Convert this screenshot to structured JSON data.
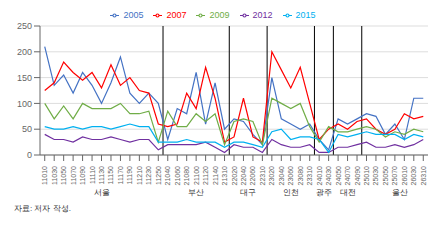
{
  "chart_data": {
    "type": "line",
    "caption": "자료: 저자 작성.",
    "categories": [
      "11010",
      "11030",
      "11050",
      "11070",
      "11090",
      "11110",
      "11130",
      "11150",
      "11170",
      "11190",
      "11210",
      "11230",
      "11250",
      "21040",
      "21060",
      "21080",
      "21100",
      "21120",
      "21140",
      "21310",
      "22020",
      "22040",
      "22060",
      "22310",
      "23020",
      "23040",
      "23060",
      "23080",
      "23310",
      "24010",
      "24030",
      "24050",
      "24070",
      "24090",
      "25010",
      "25030",
      "25050",
      "25070",
      "26010",
      "26030",
      "26310"
    ],
    "series": [
      {
        "name": "2005",
        "color": "#4472C4",
        "values": [
          210,
          135,
          155,
          120,
          160,
          135,
          100,
          140,
          190,
          120,
          100,
          120,
          100,
          30,
          90,
          80,
          160,
          60,
          140,
          50,
          70,
          65,
          40,
          20,
          150,
          70,
          60,
          50,
          60,
          30,
          10,
          70,
          60,
          70,
          80,
          75,
          40,
          60,
          30,
          110,
          110
        ]
      },
      {
        "name": "2007",
        "color": "#FF0000",
        "values": [
          125,
          140,
          180,
          160,
          145,
          160,
          130,
          175,
          135,
          150,
          125,
          120,
          60,
          55,
          60,
          120,
          90,
          170,
          110,
          25,
          35,
          110,
          35,
          25,
          200,
          165,
          130,
          170,
          100,
          30,
          50,
          60,
          50,
          65,
          70,
          50,
          40,
          50,
          80,
          70,
          75
        ]
      },
      {
        "name": "2009",
        "color": "#70AD47",
        "values": [
          100,
          70,
          95,
          70,
          100,
          90,
          90,
          90,
          100,
          80,
          80,
          85,
          25,
          85,
          55,
          55,
          80,
          65,
          80,
          20,
          65,
          70,
          65,
          20,
          110,
          100,
          90,
          100,
          55,
          25,
          55,
          45,
          45,
          50,
          55,
          50,
          35,
          45,
          40,
          50,
          45
        ]
      },
      {
        "name": "2012",
        "color": "#7030A0",
        "values": [
          40,
          30,
          30,
          25,
          35,
          30,
          30,
          35,
          30,
          25,
          30,
          30,
          10,
          20,
          20,
          20,
          20,
          25,
          15,
          5,
          20,
          15,
          15,
          5,
          30,
          20,
          15,
          15,
          20,
          5,
          5,
          15,
          15,
          20,
          25,
          15,
          15,
          20,
          15,
          20,
          30
        ]
      },
      {
        "name": "2015",
        "color": "#00B0F0",
        "values": [
          55,
          50,
          50,
          55,
          50,
          55,
          55,
          50,
          55,
          60,
          55,
          55,
          25,
          25,
          25,
          30,
          25,
          25,
          25,
          15,
          25,
          25,
          20,
          15,
          45,
          50,
          30,
          35,
          35,
          30,
          5,
          40,
          35,
          40,
          45,
          40,
          40,
          40,
          30,
          40,
          35
        ]
      }
    ],
    "annotations": [
      {
        "text": "서울",
        "x": 6.0
      },
      {
        "text": "부산",
        "x": 16.0
      },
      {
        "text": "대구",
        "x": 21.5
      },
      {
        "text": "인천",
        "x": 26.0
      },
      {
        "text": "광주",
        "x": 29.5
      },
      {
        "text": "대전",
        "x": 32.0
      },
      {
        "text": "울산",
        "x": 37.5
      }
    ],
    "boundaries": [
      12.5,
      19.5,
      23.5,
      28.5,
      30.5,
      33.5
    ],
    "ylim": [
      0,
      250
    ],
    "yticks": [
      0,
      50,
      100,
      150,
      200,
      250
    ],
    "grid": true,
    "legend": "top"
  }
}
